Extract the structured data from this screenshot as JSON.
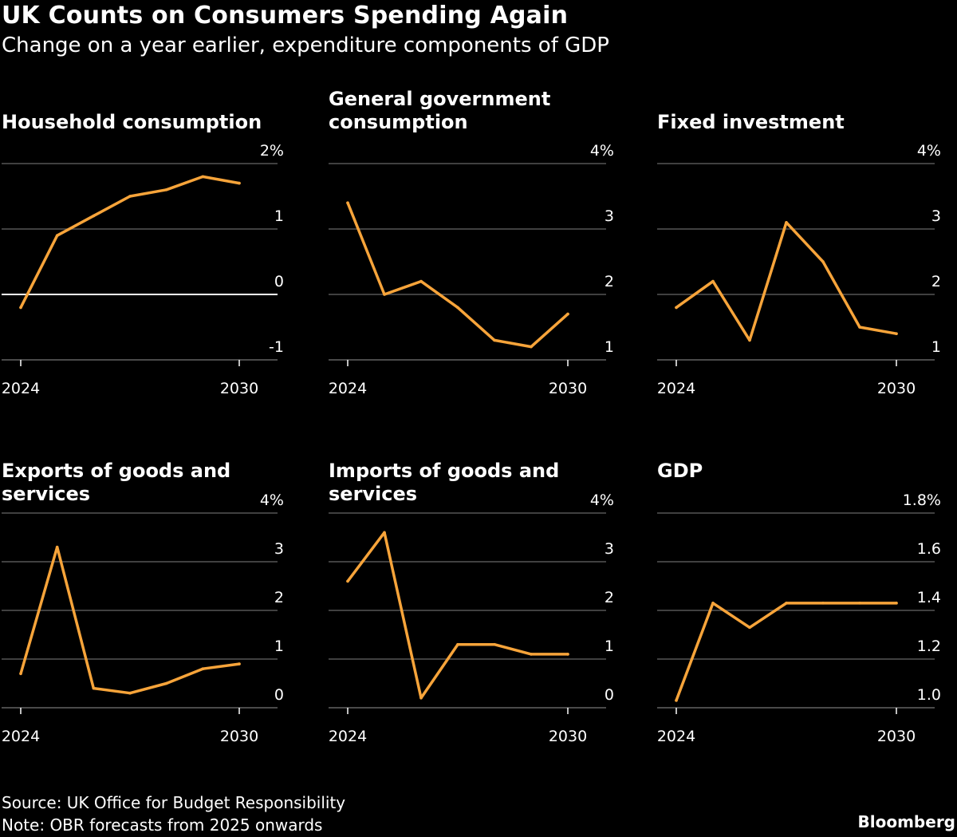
{
  "title": "UK Counts on Consumers Spending Again",
  "subtitle": "Change on a year earlier, expenditure components of GDP",
  "footer": {
    "source": "Source: UK Office for Budget Responsibility",
    "note": "Note: OBR forecasts from 2025 onwards",
    "brand": "Bloomberg"
  },
  "colors": {
    "line": "#f7a43a",
    "grid": "#555555",
    "zero": "#ffffff",
    "text": "#ffffff",
    "background": "#000000"
  },
  "chart_data": [
    {
      "type": "line",
      "title": "Household consumption",
      "x": [
        2024,
        2025,
        2026,
        2027,
        2028,
        2029,
        2030
      ],
      "xticks": [
        "2024",
        "2030"
      ],
      "values": [
        -0.2,
        0.9,
        1.2,
        1.5,
        1.6,
        1.8,
        1.7
      ],
      "ylim": [
        -1,
        2
      ],
      "yticks": [
        {
          "v": 2,
          "label": "2%"
        },
        {
          "v": 1,
          "label": "1"
        },
        {
          "v": 0,
          "label": "0"
        },
        {
          "v": -1,
          "label": "-1"
        }
      ],
      "zero_line": 0
    },
    {
      "type": "line",
      "title": "General government consumption",
      "x": [
        2024,
        2025,
        2026,
        2027,
        2028,
        2029,
        2030
      ],
      "xticks": [
        "2024",
        "2030"
      ],
      "values": [
        3.4,
        2.0,
        2.2,
        1.8,
        1.3,
        1.2,
        1.7
      ],
      "ylim": [
        1,
        4
      ],
      "yticks": [
        {
          "v": 4,
          "label": "4%"
        },
        {
          "v": 3,
          "label": "3"
        },
        {
          "v": 2,
          "label": "2"
        },
        {
          "v": 1,
          "label": "1"
        }
      ],
      "zero_line": null
    },
    {
      "type": "line",
      "title": "Fixed investment",
      "x": [
        2024,
        2025,
        2026,
        2027,
        2028,
        2029,
        2030
      ],
      "xticks": [
        "2024",
        "2030"
      ],
      "values": [
        1.8,
        2.2,
        1.3,
        3.1,
        2.5,
        1.5,
        1.4
      ],
      "ylim": [
        1,
        4
      ],
      "yticks": [
        {
          "v": 4,
          "label": "4%"
        },
        {
          "v": 3,
          "label": "3"
        },
        {
          "v": 2,
          "label": "2"
        },
        {
          "v": 1,
          "label": "1"
        }
      ],
      "zero_line": null
    },
    {
      "type": "line",
      "title": "Exports of goods and services",
      "x": [
        2024,
        2025,
        2026,
        2027,
        2028,
        2029,
        2030
      ],
      "xticks": [
        "2024",
        "2030"
      ],
      "values": [
        0.7,
        3.3,
        0.4,
        0.3,
        0.5,
        0.8,
        0.9
      ],
      "ylim": [
        0,
        4
      ],
      "yticks": [
        {
          "v": 4,
          "label": "4%"
        },
        {
          "v": 3,
          "label": "3"
        },
        {
          "v": 2,
          "label": "2"
        },
        {
          "v": 1,
          "label": "1"
        },
        {
          "v": 0,
          "label": "0"
        }
      ],
      "zero_line": null
    },
    {
      "type": "line",
      "title": "Imports of goods and services",
      "x": [
        2024,
        2025,
        2026,
        2027,
        2028,
        2029,
        2030
      ],
      "xticks": [
        "2024",
        "2030"
      ],
      "values": [
        2.6,
        3.6,
        0.2,
        1.3,
        1.3,
        1.1,
        1.1
      ],
      "ylim": [
        0,
        4
      ],
      "yticks": [
        {
          "v": 4,
          "label": "4%"
        },
        {
          "v": 3,
          "label": "3"
        },
        {
          "v": 2,
          "label": "2"
        },
        {
          "v": 1,
          "label": "1"
        },
        {
          "v": 0,
          "label": "0"
        }
      ],
      "zero_line": null
    },
    {
      "type": "line",
      "title": "GDP",
      "x": [
        2024,
        2025,
        2026,
        2027,
        2028,
        2029,
        2030
      ],
      "xticks": [
        "2024",
        "2030"
      ],
      "values": [
        1.03,
        1.43,
        1.33,
        1.43,
        1.43,
        1.43,
        1.43
      ],
      "ylim": [
        1.0,
        1.8
      ],
      "yticks": [
        {
          "v": 1.8,
          "label": "1.8%"
        },
        {
          "v": 1.6,
          "label": "1.6"
        },
        {
          "v": 1.4,
          "label": "1.4"
        },
        {
          "v": 1.2,
          "label": "1.2"
        },
        {
          "v": 1.0,
          "label": "1.0"
        }
      ],
      "zero_line": null
    }
  ]
}
